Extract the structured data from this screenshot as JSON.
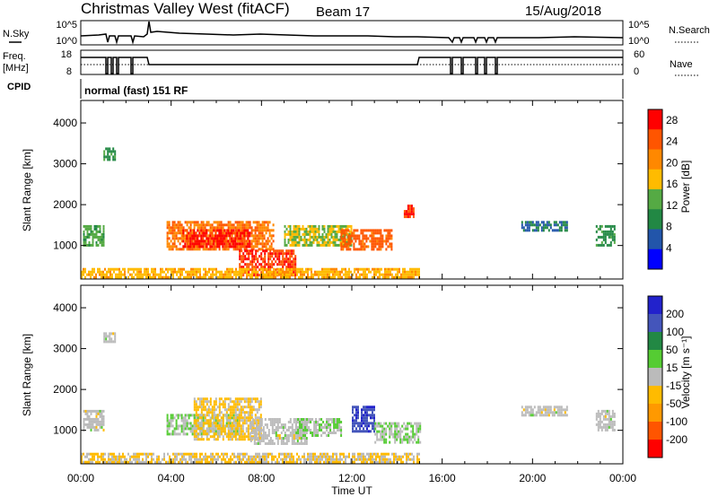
{
  "header": {
    "title": "Christmas Valley West (fitACF)",
    "beam": "Beam 17",
    "date": "15/Aug/2018"
  },
  "nsky_panel": {
    "left_label": "N.Sky",
    "right_label": "N.Search",
    "left_ticks": [
      "10^5",
      "10^0"
    ],
    "right_ticks": [
      "10^5",
      "10^0"
    ]
  },
  "freq_panel": {
    "left_label_line1": "Freq.",
    "left_label_line2": "[MHz]",
    "right_label": "Nave",
    "left_ticks": [
      "18",
      "8"
    ],
    "right_ticks": [
      "60",
      "0"
    ]
  },
  "cpid": {
    "label": "CPID",
    "mode": "normal (fast) 151 RF"
  },
  "colors": {
    "power_scale": [
      "#0000ff",
      "#2255aa",
      "#228844",
      "#55aa44",
      "#ffbb00",
      "#ff8800",
      "#ff5500",
      "#ff0000"
    ],
    "velocity_scale": [
      "#2222cc",
      "#4455bb",
      "#228844",
      "#55cc33",
      "#bbbbbb",
      "#ffbb00",
      "#ff9900",
      "#ff5500",
      "#ff0000"
    ]
  },
  "chart_data": [
    {
      "type": "heatmap",
      "title": "Power",
      "xlabel": "",
      "ylabel": "Slant Range [km]",
      "xlim": [
        "00:00",
        "24:00"
      ],
      "ylim": [
        180,
        4550
      ],
      "y_ticks": [
        "1000",
        "2000",
        "3000",
        "4000"
      ],
      "colorbar": {
        "label": "Power [dB]",
        "ticks": [
          "4",
          "8",
          "12",
          "16",
          "20",
          "24",
          "28"
        ],
        "range": [
          0,
          30
        ]
      },
      "regions": [
        {
          "t_start": 0.1,
          "t_end": 1.0,
          "r_start": 1000,
          "r_end": 1500,
          "value": 12
        },
        {
          "t_start": 1.0,
          "t_end": 1.5,
          "r_start": 3100,
          "r_end": 3400,
          "value": 10
        },
        {
          "t_start": 3.8,
          "t_end": 8.5,
          "r_start": 900,
          "r_end": 1600,
          "value": 22
        },
        {
          "t_start": 4.5,
          "t_end": 7.5,
          "r_start": 1000,
          "r_end": 1400,
          "value": 27
        },
        {
          "t_start": 7.0,
          "t_end": 9.5,
          "r_start": 300,
          "r_end": 900,
          "value": 26
        },
        {
          "t_start": 9.0,
          "t_end": 12.0,
          "r_start": 1000,
          "r_end": 1500,
          "value": 15
        },
        {
          "t_start": 11.5,
          "t_end": 13.8,
          "r_start": 900,
          "r_end": 1400,
          "value": 24
        },
        {
          "t_start": 0.0,
          "t_end": 15.0,
          "r_start": 200,
          "r_end": 450,
          "value": 18
        },
        {
          "t_start": 14.3,
          "t_end": 14.7,
          "r_start": 1700,
          "r_end": 2000,
          "value": 26
        },
        {
          "t_start": 19.5,
          "t_end": 21.5,
          "r_start": 1400,
          "r_end": 1600,
          "value": 8
        },
        {
          "t_start": 22.8,
          "t_end": 23.6,
          "r_start": 1000,
          "r_end": 1500,
          "value": 10
        }
      ]
    },
    {
      "type": "heatmap",
      "title": "Velocity",
      "xlabel": "Time UT",
      "ylabel": "Slant Range [km]",
      "xlim": [
        "00:00",
        "24:00"
      ],
      "ylim": [
        180,
        4550
      ],
      "x_ticks": [
        "00:00",
        "04:00",
        "08:00",
        "12:00",
        "16:00",
        "20:00",
        "00:00"
      ],
      "y_ticks": [
        "1000",
        "2000",
        "3000",
        "4000"
      ],
      "colorbar": {
        "label": "Velocity [m s⁻¹]",
        "ticks": [
          "200",
          "100",
          "50",
          "15",
          "-15",
          "-50",
          "-100",
          "-200"
        ],
        "range": [
          -250,
          250
        ]
      },
      "regions": [
        {
          "t_start": 0.1,
          "t_end": 1.0,
          "r_start": 1000,
          "r_end": 1500,
          "value": 0
        },
        {
          "t_start": 1.0,
          "t_end": 1.5,
          "r_start": 3200,
          "r_end": 3400,
          "value": 0
        },
        {
          "t_start": 3.8,
          "t_end": 7.0,
          "r_start": 900,
          "r_end": 1400,
          "value": 30
        },
        {
          "t_start": 5.0,
          "t_end": 8.0,
          "r_start": 800,
          "r_end": 1800,
          "value": -40
        },
        {
          "t_start": 7.5,
          "t_end": 10.0,
          "r_start": 700,
          "r_end": 1300,
          "value": 0
        },
        {
          "t_start": 9.5,
          "t_end": 11.5,
          "r_start": 900,
          "r_end": 1300,
          "value": 25
        },
        {
          "t_start": 12.0,
          "t_end": 13.0,
          "r_start": 1000,
          "r_end": 1600,
          "value": 180
        },
        {
          "t_start": 13.0,
          "t_end": 15.0,
          "r_start": 700,
          "r_end": 1200,
          "value": 25
        },
        {
          "t_start": 0.0,
          "t_end": 15.0,
          "r_start": 200,
          "r_end": 450,
          "value": -30
        },
        {
          "t_start": 19.5,
          "t_end": 21.5,
          "r_start": 1400,
          "r_end": 1600,
          "value": 0
        },
        {
          "t_start": 22.8,
          "t_end": 23.6,
          "r_start": 1000,
          "r_end": 1500,
          "value": 0
        }
      ]
    }
  ]
}
